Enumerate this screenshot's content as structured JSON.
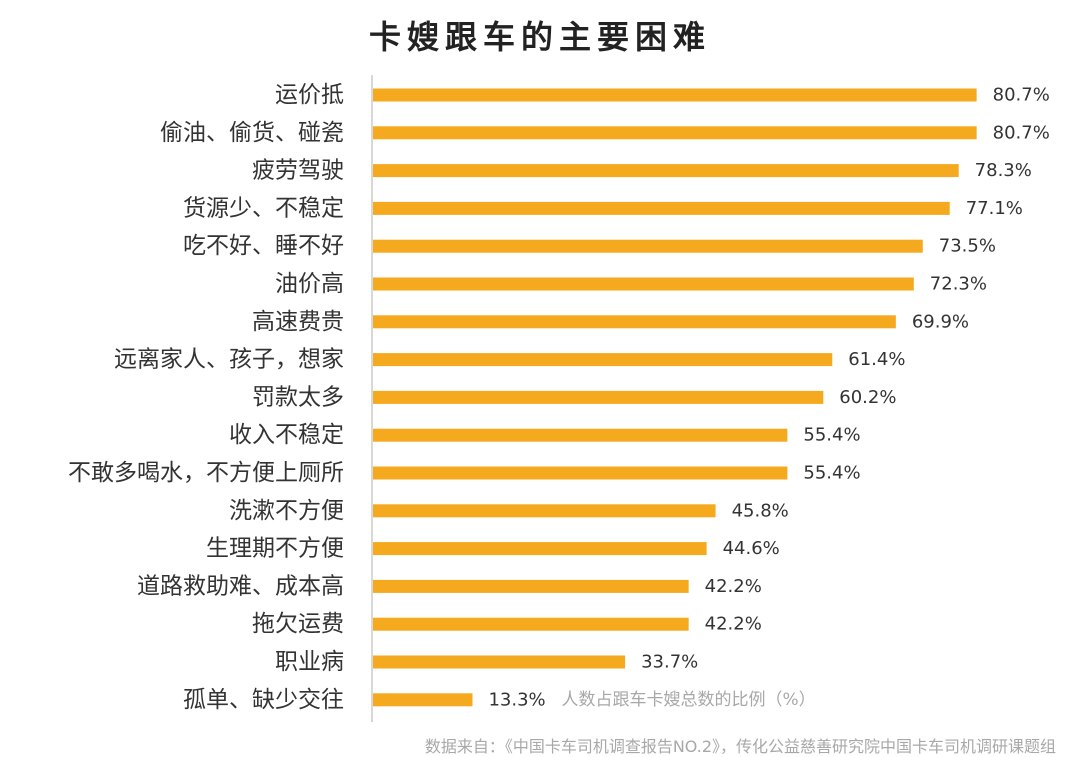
{
  "chart_data": {
    "type": "bar",
    "orientation": "horizontal",
    "title": "卡嫂跟车的主要困难",
    "categories": [
      "运价抵",
      "偷油、偷货、碰瓷",
      "疲劳驾驶",
      "货源少、不稳定",
      "吃不好、睡不好",
      "油价高",
      "高速费贵",
      "远离家人、孩子，想家",
      "罚款太多",
      "收入不稳定",
      "不敢多喝水，不方便上厕所",
      "洗漱不方便",
      "生理期不方便",
      "道路救助难、成本高",
      "拖欠运费",
      "职业病",
      "孤单、缺少交往"
    ],
    "values": [
      80.7,
      80.7,
      78.3,
      77.1,
      73.5,
      72.3,
      69.9,
      61.4,
      60.2,
      55.4,
      55.4,
      45.8,
      44.6,
      42.2,
      42.2,
      33.7,
      13.3
    ],
    "value_suffix": "%",
    "unit_note": "人数占跟车卡嫂总数的比例（%）",
    "xlim": [
      0,
      100
    ],
    "bar_color": "#F5A91E",
    "axis_color": "#cccccc",
    "grid": false
  },
  "source": "数据来自：《中国卡车司机调查报告NO.2》，传化公益慈善研究院中国卡车司机调研课题组"
}
